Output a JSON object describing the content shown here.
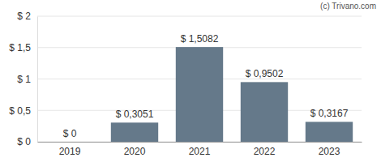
{
  "chart_data": {
    "type": "bar",
    "annotation": "(c) Trivano.com",
    "categories": [
      "2019",
      "2020",
      "2021",
      "2022",
      "2023"
    ],
    "values": [
      0,
      0.3051,
      1.5082,
      0.9502,
      0.3167
    ],
    "value_labels": [
      "$ 0",
      "$ 0,3051",
      "$ 1,5082",
      "$ 0,9502",
      "$ 0,3167"
    ],
    "color": "#65798a",
    "ylim": [
      0,
      2
    ],
    "yticks": [
      {
        "value": 0,
        "label": "$ 0"
      },
      {
        "value": 0.5,
        "label": "$ 0,5"
      },
      {
        "value": 1,
        "label": "$ 1"
      },
      {
        "value": 1.5,
        "label": "$ 1,5"
      },
      {
        "value": 2,
        "label": "$ 2"
      }
    ],
    "grid": true,
    "data_labels": true
  }
}
